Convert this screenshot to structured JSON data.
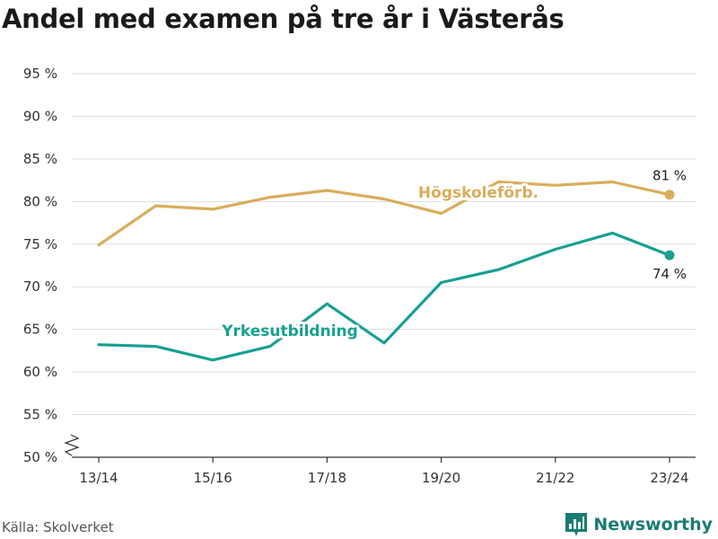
{
  "title": "Andel med examen på tre år i Västerås",
  "source": "Källa: Skolverket",
  "brand": "Newsworthy",
  "colors": {
    "hogskole": "#d9ad5b",
    "yrkes": "#17a093",
    "grid": "#dddddd",
    "axis": "#333333"
  },
  "chart_data": {
    "type": "line",
    "x": [
      "13/14",
      "14/15",
      "15/16",
      "16/17",
      "17/18",
      "18/19",
      "19/20",
      "20/21",
      "21/22",
      "22/23",
      "23/24"
    ],
    "x_tick_labels": [
      "13/14",
      "15/16",
      "17/18",
      "19/20",
      "21/22",
      "23/24"
    ],
    "y_ticks": [
      50,
      55,
      60,
      65,
      70,
      75,
      80,
      85,
      90,
      95
    ],
    "y_tick_labels": [
      "50 %",
      "55 %",
      "60 %",
      "65 %",
      "70 %",
      "75 %",
      "80 %",
      "85 %",
      "90 %",
      "95 %"
    ],
    "ylim": [
      50,
      97
    ],
    "y_axis_break": true,
    "grid": true,
    "series": [
      {
        "name": "Högskoleförb.",
        "color": "#d9ad5b",
        "values": [
          74.9,
          79.5,
          79.1,
          80.5,
          81.3,
          80.3,
          78.6,
          82.3,
          81.9,
          82.3,
          80.8
        ],
        "end_label": "81 %"
      },
      {
        "name": "Yrkesutbildning",
        "color": "#17a093",
        "values": [
          63.2,
          63.0,
          61.4,
          63.0,
          68.0,
          63.4,
          70.5,
          72.0,
          74.4,
          76.3,
          73.7
        ],
        "end_label": "74 %"
      }
    ]
  }
}
